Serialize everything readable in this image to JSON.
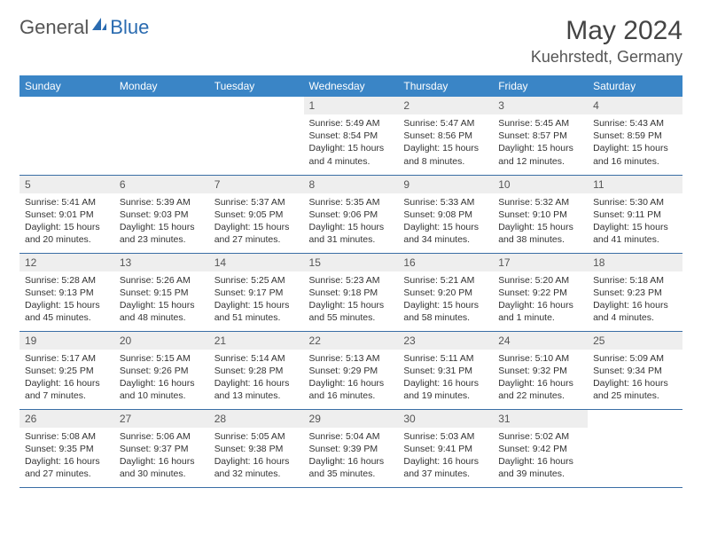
{
  "brand": {
    "part1": "General",
    "part2": "Blue"
  },
  "title": "May 2024",
  "location": "Kuehrstedt, Germany",
  "colors": {
    "header_bg": "#3a85c6",
    "header_text": "#ffffff",
    "daynum_bg": "#eeeeee",
    "border": "#3a6ea5",
    "text": "#333333",
    "brand_blue": "#2a6bb0"
  },
  "day_labels": [
    "Sunday",
    "Monday",
    "Tuesday",
    "Wednesday",
    "Thursday",
    "Friday",
    "Saturday"
  ],
  "weeks": [
    [
      {
        "n": "",
        "lines": []
      },
      {
        "n": "",
        "lines": []
      },
      {
        "n": "",
        "lines": []
      },
      {
        "n": "1",
        "lines": [
          "Sunrise: 5:49 AM",
          "Sunset: 8:54 PM",
          "Daylight: 15 hours and 4 minutes."
        ]
      },
      {
        "n": "2",
        "lines": [
          "Sunrise: 5:47 AM",
          "Sunset: 8:56 PM",
          "Daylight: 15 hours and 8 minutes."
        ]
      },
      {
        "n": "3",
        "lines": [
          "Sunrise: 5:45 AM",
          "Sunset: 8:57 PM",
          "Daylight: 15 hours and 12 minutes."
        ]
      },
      {
        "n": "4",
        "lines": [
          "Sunrise: 5:43 AM",
          "Sunset: 8:59 PM",
          "Daylight: 15 hours and 16 minutes."
        ]
      }
    ],
    [
      {
        "n": "5",
        "lines": [
          "Sunrise: 5:41 AM",
          "Sunset: 9:01 PM",
          "Daylight: 15 hours and 20 minutes."
        ]
      },
      {
        "n": "6",
        "lines": [
          "Sunrise: 5:39 AM",
          "Sunset: 9:03 PM",
          "Daylight: 15 hours and 23 minutes."
        ]
      },
      {
        "n": "7",
        "lines": [
          "Sunrise: 5:37 AM",
          "Sunset: 9:05 PM",
          "Daylight: 15 hours and 27 minutes."
        ]
      },
      {
        "n": "8",
        "lines": [
          "Sunrise: 5:35 AM",
          "Sunset: 9:06 PM",
          "Daylight: 15 hours and 31 minutes."
        ]
      },
      {
        "n": "9",
        "lines": [
          "Sunrise: 5:33 AM",
          "Sunset: 9:08 PM",
          "Daylight: 15 hours and 34 minutes."
        ]
      },
      {
        "n": "10",
        "lines": [
          "Sunrise: 5:32 AM",
          "Sunset: 9:10 PM",
          "Daylight: 15 hours and 38 minutes."
        ]
      },
      {
        "n": "11",
        "lines": [
          "Sunrise: 5:30 AM",
          "Sunset: 9:11 PM",
          "Daylight: 15 hours and 41 minutes."
        ]
      }
    ],
    [
      {
        "n": "12",
        "lines": [
          "Sunrise: 5:28 AM",
          "Sunset: 9:13 PM",
          "Daylight: 15 hours and 45 minutes."
        ]
      },
      {
        "n": "13",
        "lines": [
          "Sunrise: 5:26 AM",
          "Sunset: 9:15 PM",
          "Daylight: 15 hours and 48 minutes."
        ]
      },
      {
        "n": "14",
        "lines": [
          "Sunrise: 5:25 AM",
          "Sunset: 9:17 PM",
          "Daylight: 15 hours and 51 minutes."
        ]
      },
      {
        "n": "15",
        "lines": [
          "Sunrise: 5:23 AM",
          "Sunset: 9:18 PM",
          "Daylight: 15 hours and 55 minutes."
        ]
      },
      {
        "n": "16",
        "lines": [
          "Sunrise: 5:21 AM",
          "Sunset: 9:20 PM",
          "Daylight: 15 hours and 58 minutes."
        ]
      },
      {
        "n": "17",
        "lines": [
          "Sunrise: 5:20 AM",
          "Sunset: 9:22 PM",
          "Daylight: 16 hours and 1 minute."
        ]
      },
      {
        "n": "18",
        "lines": [
          "Sunrise: 5:18 AM",
          "Sunset: 9:23 PM",
          "Daylight: 16 hours and 4 minutes."
        ]
      }
    ],
    [
      {
        "n": "19",
        "lines": [
          "Sunrise: 5:17 AM",
          "Sunset: 9:25 PM",
          "Daylight: 16 hours and 7 minutes."
        ]
      },
      {
        "n": "20",
        "lines": [
          "Sunrise: 5:15 AM",
          "Sunset: 9:26 PM",
          "Daylight: 16 hours and 10 minutes."
        ]
      },
      {
        "n": "21",
        "lines": [
          "Sunrise: 5:14 AM",
          "Sunset: 9:28 PM",
          "Daylight: 16 hours and 13 minutes."
        ]
      },
      {
        "n": "22",
        "lines": [
          "Sunrise: 5:13 AM",
          "Sunset: 9:29 PM",
          "Daylight: 16 hours and 16 minutes."
        ]
      },
      {
        "n": "23",
        "lines": [
          "Sunrise: 5:11 AM",
          "Sunset: 9:31 PM",
          "Daylight: 16 hours and 19 minutes."
        ]
      },
      {
        "n": "24",
        "lines": [
          "Sunrise: 5:10 AM",
          "Sunset: 9:32 PM",
          "Daylight: 16 hours and 22 minutes."
        ]
      },
      {
        "n": "25",
        "lines": [
          "Sunrise: 5:09 AM",
          "Sunset: 9:34 PM",
          "Daylight: 16 hours and 25 minutes."
        ]
      }
    ],
    [
      {
        "n": "26",
        "lines": [
          "Sunrise: 5:08 AM",
          "Sunset: 9:35 PM",
          "Daylight: 16 hours and 27 minutes."
        ]
      },
      {
        "n": "27",
        "lines": [
          "Sunrise: 5:06 AM",
          "Sunset: 9:37 PM",
          "Daylight: 16 hours and 30 minutes."
        ]
      },
      {
        "n": "28",
        "lines": [
          "Sunrise: 5:05 AM",
          "Sunset: 9:38 PM",
          "Daylight: 16 hours and 32 minutes."
        ]
      },
      {
        "n": "29",
        "lines": [
          "Sunrise: 5:04 AM",
          "Sunset: 9:39 PM",
          "Daylight: 16 hours and 35 minutes."
        ]
      },
      {
        "n": "30",
        "lines": [
          "Sunrise: 5:03 AM",
          "Sunset: 9:41 PM",
          "Daylight: 16 hours and 37 minutes."
        ]
      },
      {
        "n": "31",
        "lines": [
          "Sunrise: 5:02 AM",
          "Sunset: 9:42 PM",
          "Daylight: 16 hours and 39 minutes."
        ]
      },
      {
        "n": "",
        "lines": []
      }
    ]
  ]
}
